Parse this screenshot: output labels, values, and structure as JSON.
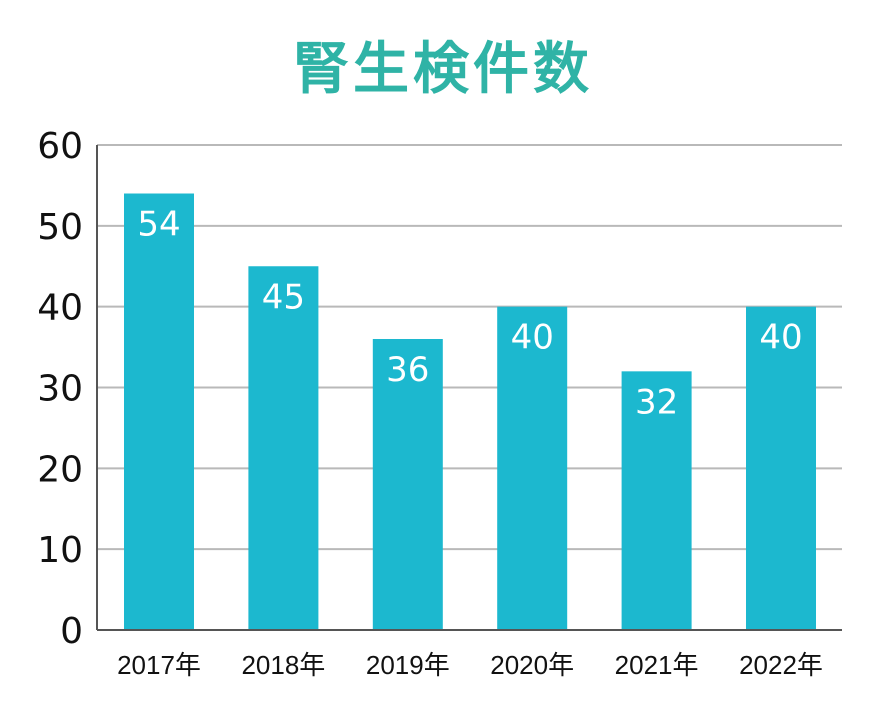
{
  "chart_data": {
    "type": "bar",
    "title": "腎生検件数",
    "xlabel": "",
    "ylabel": "",
    "categories": [
      "2017年",
      "2018年",
      "2019年",
      "2020年",
      "2021年",
      "2022年"
    ],
    "values": [
      54,
      45,
      36,
      40,
      32,
      40
    ],
    "data_labels": [
      "54",
      "45",
      "36",
      "40",
      "32",
      "40"
    ],
    "ylim": [
      0,
      60
    ],
    "yticks": [
      0,
      10,
      20,
      30,
      40,
      50,
      60
    ],
    "ytick_labels": [
      "0",
      "10",
      "20",
      "30",
      "40",
      "50",
      "60"
    ],
    "grid": true,
    "legend": "none",
    "colors": {
      "bar": "#1cb8cf",
      "title": "#2fb3a6",
      "grid": "#b9b9b9",
      "axis": "#555555",
      "text": "#111111",
      "data_label": "#ffffff"
    }
  }
}
